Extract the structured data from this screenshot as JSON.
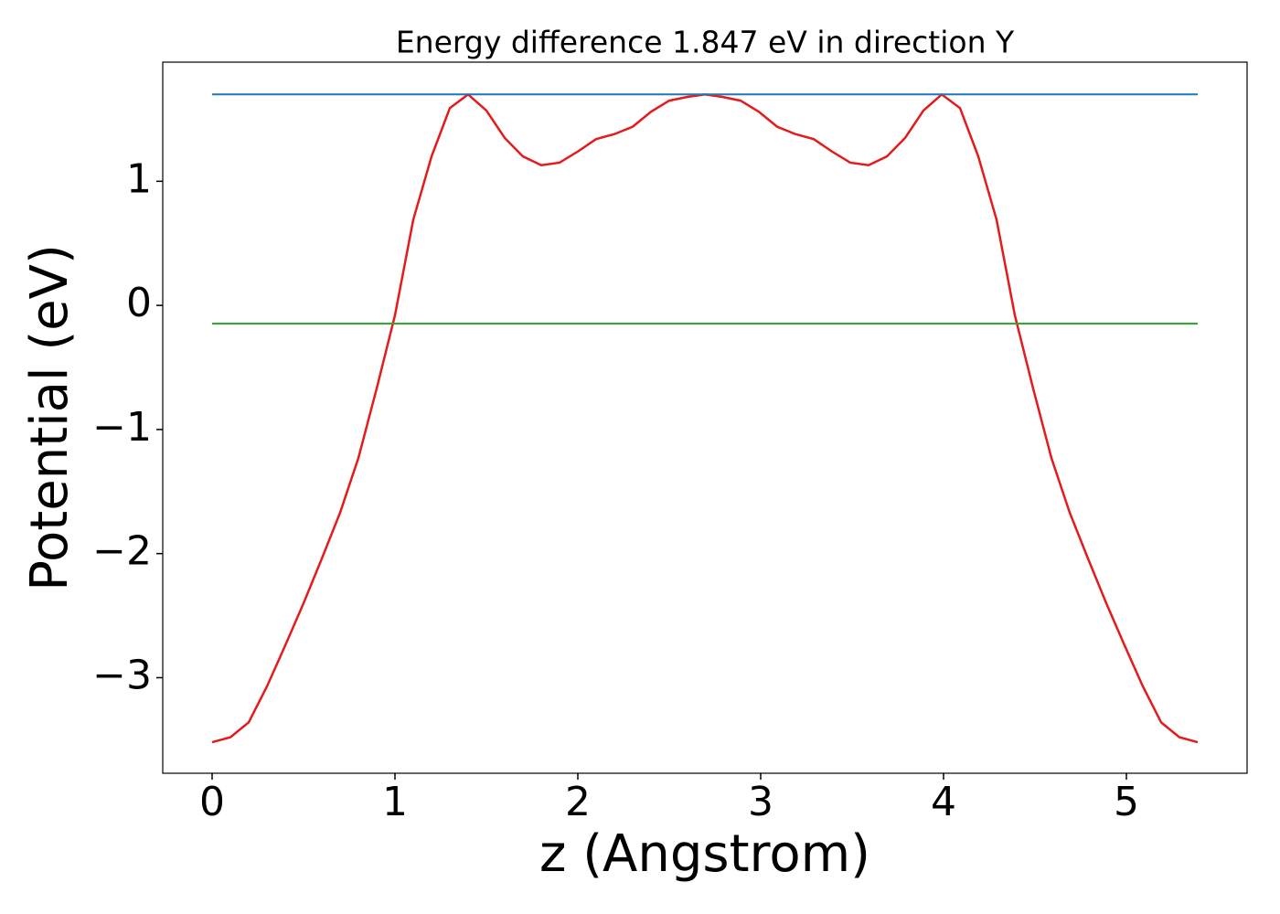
{
  "chart_data": {
    "type": "line",
    "title": "Energy difference 1.847 eV in direction Y",
    "x_label": "z (Angstrom)",
    "y_label": "Potential (eV)",
    "xlim": [
      -0.27,
      5.66
    ],
    "ylim": [
      -3.77,
      1.96
    ],
    "xticks": [
      0,
      1,
      2,
      3,
      4,
      5
    ],
    "yticks": [
      {
        "value": -3,
        "label": "−3"
      },
      {
        "value": -2,
        "label": "−2"
      },
      {
        "value": -1,
        "label": "−1"
      },
      0,
      1
    ],
    "series": [
      {
        "color": "#e41a1c",
        "x": [
          0,
          0.1,
          0.2,
          0.3,
          0.4,
          0.5,
          0.6,
          0.7,
          0.8,
          0.9,
          1.0,
          1.1,
          1.2,
          1.3,
          1.4,
          1.5,
          1.6,
          1.7,
          1.8,
          1.9,
          2.0,
          2.1,
          2.2,
          2.3,
          2.4,
          2.5,
          2.6,
          2.695,
          2.79,
          2.89,
          2.99,
          3.09,
          3.19,
          3.29,
          3.39,
          3.49,
          3.59,
          3.69,
          3.79,
          3.89,
          3.99,
          4.09,
          4.19,
          4.29,
          4.39,
          4.49,
          4.59,
          4.69,
          4.79,
          4.89,
          4.99,
          5.09,
          5.19,
          5.29,
          5.39
        ],
        "values": [
          -3.52,
          -3.48,
          -3.36,
          -3.07,
          -2.74,
          -2.4,
          -2.04,
          -1.67,
          -1.23,
          -0.67,
          -0.08,
          0.69,
          1.2,
          1.59,
          1.7,
          1.57,
          1.35,
          1.2,
          1.13,
          1.15,
          1.24,
          1.34,
          1.38,
          1.44,
          1.56,
          1.65,
          1.68,
          1.7,
          1.68,
          1.65,
          1.56,
          1.44,
          1.38,
          1.34,
          1.24,
          1.15,
          1.13,
          1.2,
          1.35,
          1.57,
          1.7,
          1.59,
          1.2,
          0.69,
          -0.08,
          -0.67,
          -1.23,
          -1.67,
          -2.04,
          -2.4,
          -2.74,
          -3.07,
          -3.36,
          -3.48,
          -3.52
        ]
      },
      {
        "color": "#1f77b4",
        "x": [
          0,
          5.39
        ],
        "values": [
          1.7,
          1.7
        ]
      },
      {
        "color": "#2ca02c",
        "x": [
          0,
          5.39
        ],
        "values": [
          -0.147,
          -0.147
        ]
      }
    ]
  }
}
